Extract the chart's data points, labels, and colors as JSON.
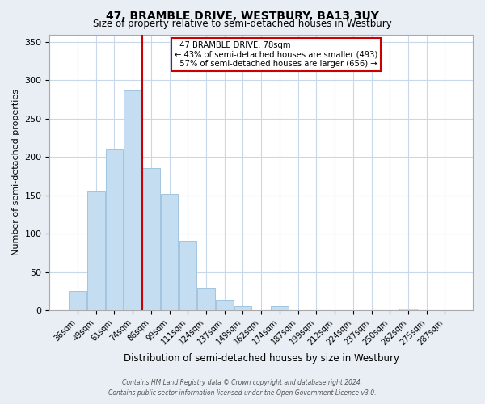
{
  "title": "47, BRAMBLE DRIVE, WESTBURY, BA13 3UY",
  "subtitle": "Size of property relative to semi-detached houses in Westbury",
  "xlabel": "Distribution of semi-detached houses by size in Westbury",
  "ylabel": "Number of semi-detached properties",
  "bar_labels": [
    "36sqm",
    "49sqm",
    "61sqm",
    "74sqm",
    "86sqm",
    "99sqm",
    "111sqm",
    "124sqm",
    "137sqm",
    "149sqm",
    "162sqm",
    "174sqm",
    "187sqm",
    "199sqm",
    "212sqm",
    "224sqm",
    "237sqm",
    "250sqm",
    "262sqm",
    "275sqm",
    "287sqm"
  ],
  "bar_values": [
    25,
    155,
    210,
    287,
    185,
    152,
    91,
    28,
    14,
    5,
    0,
    5,
    0,
    0,
    0,
    0,
    0,
    0,
    2,
    0,
    0
  ],
  "bar_color": "#c5ddf0",
  "bar_edge_color": "#a0c4e0",
  "property_line_x": 3.5,
  "property_label": "47 BRAMBLE DRIVE: 78sqm",
  "smaller_pct": "43%",
  "smaller_count": 493,
  "larger_pct": "57%",
  "larger_count": 656,
  "line_color": "#cc0000",
  "annotation_box_edge": "#cc0000",
  "ylim": [
    0,
    360
  ],
  "yticks": [
    0,
    50,
    100,
    150,
    200,
    250,
    300,
    350
  ],
  "footer1": "Contains HM Land Registry data © Crown copyright and database right 2024.",
  "footer2": "Contains public sector information licensed under the Open Government Licence v3.0.",
  "bg_color": "#e8eef4",
  "plot_bg_color": "#ffffff",
  "title_fontsize": 10,
  "subtitle_fontsize": 8.5
}
